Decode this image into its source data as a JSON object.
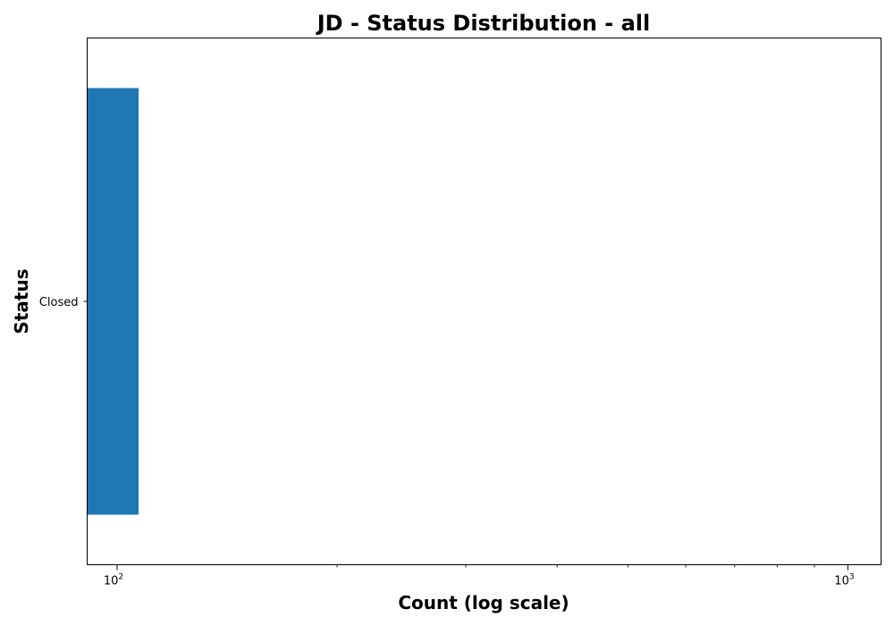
{
  "chart_data": {
    "type": "bar",
    "orientation": "horizontal",
    "title": "JD - Status Distribution - all",
    "xlabel": "Count (log scale)",
    "ylabel": "Status",
    "x_scale": "log",
    "xlim": [
      91,
      1110
    ],
    "categories": [
      "Closed"
    ],
    "values": [
      107
    ],
    "x_ticks": [
      {
        "value": 100,
        "base": "10",
        "exponent": "2"
      },
      {
        "value": 1000,
        "base": "10",
        "exponent": "3"
      }
    ],
    "bar_color": "#1f77b4",
    "grid": false,
    "legend": "none"
  }
}
